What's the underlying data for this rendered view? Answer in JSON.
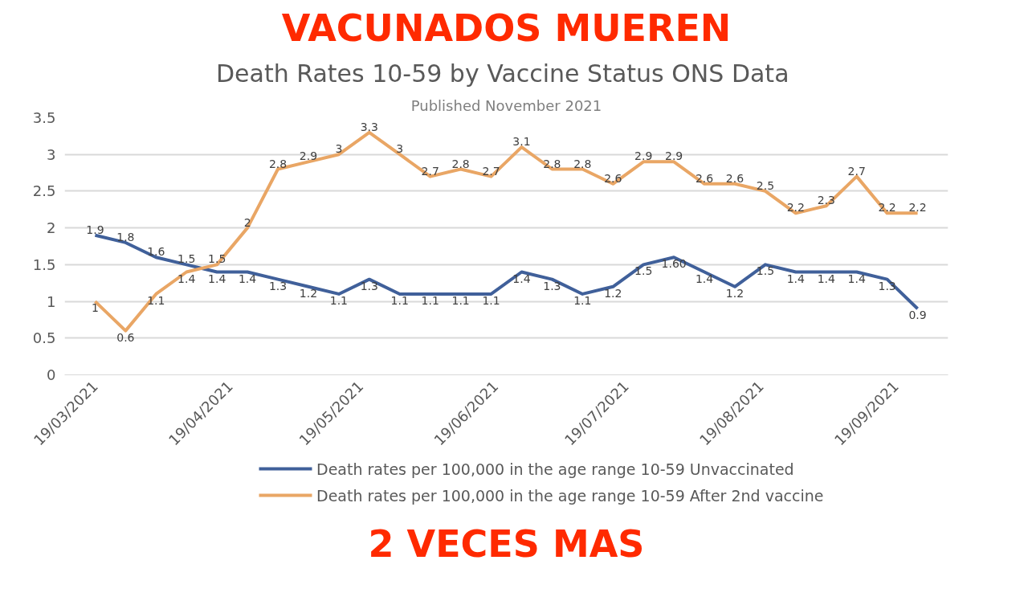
{
  "chart_data": {
    "type": "line",
    "title": "Death Rates 10-59  by Vaccine Status ONS Data",
    "subtitle": "Published November 2021",
    "x": [
      "2021-03-19",
      "2021-03-26",
      "2021-04-02",
      "2021-04-09",
      "2021-04-16",
      "2021-04-23",
      "2021-04-30",
      "2021-05-07",
      "2021-05-14",
      "2021-05-21",
      "2021-05-28",
      "2021-06-04",
      "2021-06-11",
      "2021-06-18",
      "2021-06-25",
      "2021-07-02",
      "2021-07-09",
      "2021-07-16",
      "2021-07-23",
      "2021-07-30",
      "2021-08-06",
      "2021-08-13",
      "2021-08-20",
      "2021-08-27",
      "2021-09-03",
      "2021-09-10",
      "2021-09-17",
      "2021-09-24"
    ],
    "series": [
      {
        "name": "Death rates per 100,000 in the age range 10-59 Unvaccinated",
        "color": "#40609a",
        "values": [
          1.9,
          1.8,
          1.6,
          1.5,
          1.4,
          1.4,
          1.3,
          1.2,
          1.1,
          1.3,
          1.1,
          1.1,
          1.1,
          1.1,
          1.4,
          1.3,
          1.1,
          1.2,
          1.5,
          1.6,
          1.4,
          1.2,
          1.5,
          1.4,
          1.4,
          1.4,
          1.3,
          0.9
        ],
        "value_labels": [
          "1.9",
          "1.8",
          "1.6",
          "1.5",
          "1.4",
          "1.4",
          "1.3",
          "1.2",
          "1.1",
          "1.3",
          "1.1",
          "1.1",
          "1.1",
          "1.1",
          "1.4",
          "1.3",
          "1.1",
          "1.2",
          "1.5",
          "1.60",
          "1.4",
          "1.2",
          "1.5",
          "1.4",
          "1.4",
          "1.4",
          "1.3",
          "0.9"
        ]
      },
      {
        "name": "Death rates per 100,000 in the age range 10-59 After 2nd  vaccine",
        "color": "#e9a665",
        "values": [
          1,
          0.6,
          1.1,
          1.4,
          1.5,
          2,
          2.8,
          2.9,
          3,
          3.3,
          3,
          2.7,
          2.8,
          2.7,
          3.1,
          2.8,
          2.8,
          2.6,
          2.9,
          2.9,
          2.6,
          2.6,
          2.5,
          2.2,
          2.3,
          2.7,
          2.2,
          2.2
        ],
        "value_labels": [
          "1",
          "0.6",
          "1.1",
          "1.4",
          "1.5",
          "2",
          "2.8",
          "2.9",
          "3",
          "3.3",
          "3",
          "2.7",
          "2.8",
          "2.7",
          "3.1",
          "2.8",
          "2.8",
          "2.6",
          "2.9",
          "2.9",
          "2.6",
          "2.6",
          "2.5",
          "2.2",
          "2.3",
          "2.7",
          "2.2",
          "2.2"
        ]
      }
    ],
    "xlim": [
      "2021-03-12",
      "2021-10-01"
    ],
    "xticks": [
      {
        "value": "2021-03-19",
        "label": "19/03/2021"
      },
      {
        "value": "2021-04-19",
        "label": "19/04/2021"
      },
      {
        "value": "2021-05-19",
        "label": "19/05/2021"
      },
      {
        "value": "2021-06-19",
        "label": "19/06/2021"
      },
      {
        "value": "2021-07-19",
        "label": "19/07/2021"
      },
      {
        "value": "2021-08-19",
        "label": "19/08/2021"
      },
      {
        "value": "2021-09-19",
        "label": "19/09/2021"
      }
    ],
    "ylim": [
      0,
      3.5
    ],
    "yticks": [
      0,
      0.5,
      1,
      1.5,
      2,
      2.5,
      3,
      3.5
    ],
    "grid": "y",
    "legend": "bottom",
    "marker": "none",
    "line_style": "solid",
    "annotations": [
      "VACUNADOS MUEREN",
      "2 VECES MAS"
    ]
  }
}
